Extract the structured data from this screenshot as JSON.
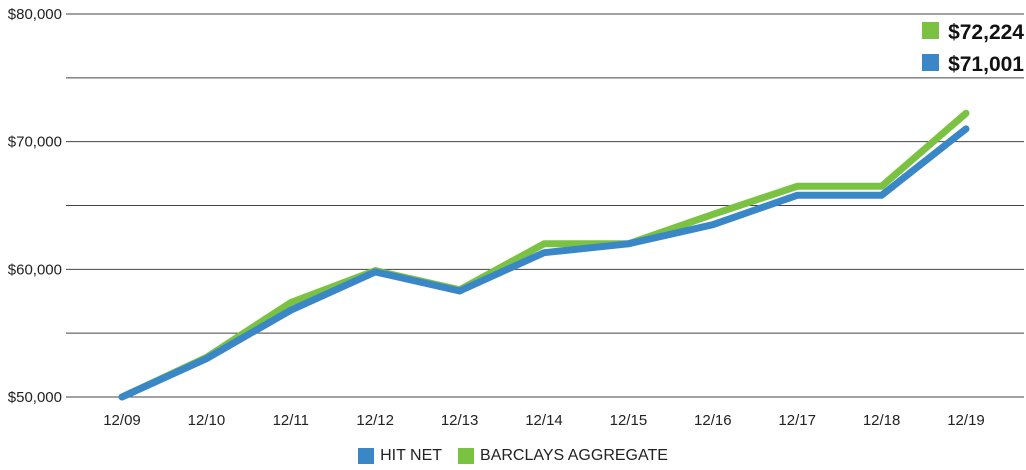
{
  "chart_data": {
    "type": "line",
    "categories": [
      "12/09",
      "12/10",
      "12/11",
      "12/12",
      "12/13",
      "12/14",
      "12/15",
      "12/16",
      "12/17",
      "12/18",
      "12/19"
    ],
    "ylim": [
      50000,
      80000
    ],
    "y_tick_labels": [
      "$50,000",
      "$60,000",
      "$70,000",
      "$80,000"
    ],
    "y_ticks": [
      50000,
      60000,
      70000,
      80000
    ],
    "grid_lines": [
      50000,
      55000,
      60000,
      65000,
      70000,
      75000,
      80000
    ],
    "grid": true,
    "legend_placement": "bottom-center",
    "series": [
      {
        "name": "HIT NET",
        "color": "#3a87c8",
        "values": [
          50000,
          53000,
          56800,
          59800,
          58300,
          61300,
          62000,
          63500,
          65800,
          65800,
          71001
        ],
        "end_label": "$71,001"
      },
      {
        "name": "BARCLAYS AGGREGATE",
        "color": "#7cc242",
        "values": [
          50000,
          53100,
          57400,
          59900,
          58400,
          62000,
          62000,
          64300,
          66500,
          66500,
          72224
        ],
        "end_label": "$72,224"
      }
    ]
  }
}
